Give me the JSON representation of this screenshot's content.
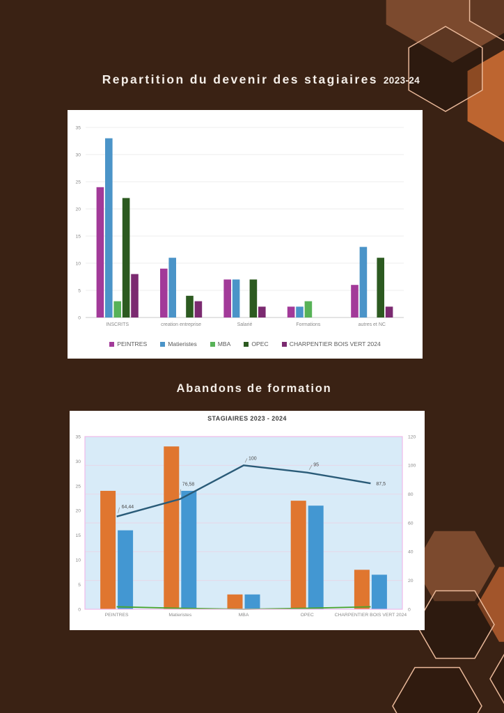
{
  "page": {
    "background_color": "#3a2214",
    "title1": {
      "text": "Repartition du devenir des stagiaires",
      "suffix": "2023-24"
    },
    "title2": "Abandons de formation"
  },
  "decor": {
    "hex_fill_brown": "#7c4a2e",
    "hex_fill_orange": "#bd6530",
    "hex_fill_orange_dark": "#a2552b",
    "hex_outline": "#eab99a"
  },
  "chart_data": [
    {
      "type": "bar",
      "title": "",
      "categories": [
        "INSCRITS",
        "creation entreprise",
        "Salarié",
        "Formations",
        "autres et NC"
      ],
      "series": [
        {
          "name": "PEINTRES",
          "color": "#a23a99",
          "values": [
            24,
            9,
            7,
            2,
            6
          ]
        },
        {
          "name": "Matieristes",
          "color": "#4b94c8",
          "values": [
            33,
            11,
            7,
            2,
            13
          ]
        },
        {
          "name": "MBA",
          "color": "#57b257",
          "values": [
            3,
            0,
            0,
            3,
            0
          ]
        },
        {
          "name": "OPEC",
          "color": "#2c5a20",
          "values": [
            22,
            4,
            7,
            0,
            11
          ]
        },
        {
          "name": "CHARPENTIER BOIS VERT 2024",
          "color": "#7b2a70",
          "values": [
            8,
            3,
            2,
            0,
            2
          ]
        }
      ],
      "ylim": [
        0,
        35
      ],
      "ytick_step": 5,
      "grid": true,
      "legend_position": "bottom"
    },
    {
      "type": "combo-bar-line",
      "title": "STAGIAIRES 2023 - 2024",
      "categories": [
        "PEINTRES",
        "Matieristes",
        "MBA",
        "OPEC",
        "CHARPENTIER BOIS VERT 2024"
      ],
      "bar_series": [
        {
          "color": "#e0762f",
          "axis": "left",
          "values": [
            24,
            33,
            3,
            22,
            8
          ]
        },
        {
          "color": "#4397d2",
          "axis": "left",
          "values": [
            16,
            24,
            3,
            21,
            7
          ]
        }
      ],
      "green_line": {
        "color": "#4aa52e",
        "axis": "left",
        "values": [
          0.5,
          0.2,
          0,
          0.2,
          0.5
        ]
      },
      "line_series": {
        "color": "#2a5b78",
        "axis": "right",
        "values": [
          64.44,
          76.58,
          100,
          95,
          87.5
        ],
        "labels": [
          "64,44",
          "76,58",
          "100",
          "95",
          "87,5"
        ]
      },
      "left_axis": {
        "min": 0,
        "max": 35,
        "step": 5
      },
      "right_axis": {
        "min": 0,
        "max": 120,
        "step": 20
      },
      "plot_bg": "#d8ebf8",
      "plot_border": "#efb9e9",
      "grid": true,
      "legend_position": "none"
    }
  ]
}
